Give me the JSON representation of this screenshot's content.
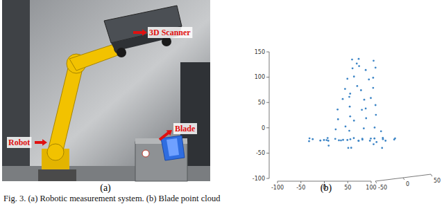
{
  "panels": [
    {
      "label": "(a)",
      "callouts": [
        "3D Scanner",
        "Robot",
        "Blade"
      ]
    },
    {
      "label": "(b)"
    }
  ],
  "caption": "Fig. 3. (a) Robotic measurement system. (b) Blade point cloud",
  "chart_data": {
    "type": "scatter3d",
    "color": "#3d85c6",
    "marker": "circle",
    "x": [
      -90,
      -80,
      -70,
      -60,
      -50,
      -40,
      -30,
      -20,
      -10,
      0,
      10,
      20,
      30,
      40,
      50,
      60,
      70,
      80,
      90,
      -85,
      -65,
      -45,
      -25,
      -5,
      15,
      35,
      55,
      75,
      -50,
      -20,
      10,
      40,
      70,
      -35,
      -20,
      0,
      25,
      50,
      60,
      -30,
      -10,
      10,
      30,
      45,
      -25,
      -5,
      15,
      35,
      50,
      -20,
      0,
      20,
      40,
      -10,
      -15,
      5,
      25,
      45,
      -10,
      10,
      30,
      45,
      -5,
      15,
      35,
      50,
      0,
      20,
      40,
      10
    ],
    "values": [
      -30,
      -32,
      -29,
      -31,
      -30,
      -33,
      -28,
      -30,
      -31,
      -29,
      -30,
      -32,
      -30,
      -28,
      -31,
      -30,
      -33,
      -29,
      -30,
      -27,
      -34,
      -30,
      -32,
      -29,
      -31,
      -30,
      -28,
      -32,
      -42,
      -48,
      -45,
      -40,
      -46,
      -10,
      -5,
      -12,
      -8,
      -15,
      -5,
      10,
      15,
      8,
      12,
      18,
      30,
      35,
      28,
      32,
      38,
      50,
      55,
      48,
      52,
      60,
      70,
      75,
      68,
      72,
      90,
      95,
      88,
      92,
      110,
      115,
      108,
      112,
      128,
      130,
      125,
      120
    ],
    "z": [
      5,
      -10,
      15,
      0,
      -15,
      10,
      -5,
      20,
      0,
      -20,
      10,
      -5,
      15,
      0,
      -10,
      5,
      -15,
      10,
      0,
      -5,
      12,
      -8,
      18,
      -12,
      6,
      -18,
      9,
      -3,
      0,
      10,
      -10,
      5,
      -5,
      0,
      5,
      -5,
      0,
      10,
      -10,
      0,
      5,
      -5,
      0,
      5,
      -5,
      0,
      5,
      -5,
      0,
      0,
      -5,
      5,
      0,
      5,
      0,
      5,
      -5,
      0,
      0,
      -5,
      5,
      0,
      5,
      0,
      -5,
      0,
      0,
      -5,
      5,
      0
    ],
    "xlim": [
      -100,
      100
    ],
    "xticks": [
      -100,
      -50,
      0,
      50,
      100
    ],
    "ylim": [
      -100,
      150
    ],
    "yticks": [
      -100,
      -50,
      0,
      50,
      100,
      150
    ],
    "zlim": [
      -50,
      50
    ],
    "zticks": [
      -50,
      0,
      50
    ]
  }
}
